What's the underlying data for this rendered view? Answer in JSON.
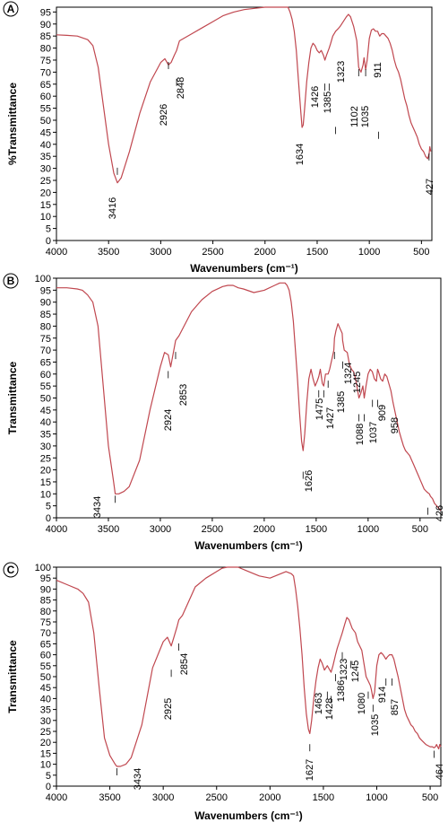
{
  "chart_data": [
    {
      "type": "line",
      "panel": "A",
      "xlabel": "Wavenumbers (cm⁻¹)",
      "ylabel": "%Transmittance",
      "xlim": [
        4000,
        400
      ],
      "ylim": [
        0,
        97
      ],
      "x_ticks": [
        4000,
        3500,
        3000,
        2500,
        2000,
        1500,
        1000,
        500
      ],
      "y_ticks": [
        0,
        5,
        10,
        15,
        20,
        25,
        30,
        35,
        40,
        45,
        50,
        55,
        60,
        65,
        70,
        75,
        80,
        85,
        90,
        95
      ],
      "color": "#c0474f",
      "grid": false,
      "series": [
        {
          "x": [
            4000,
            3900,
            3800,
            3700,
            3650,
            3600,
            3550,
            3500,
            3450,
            3416,
            3380,
            3300,
            3200,
            3100,
            3000,
            2960,
            2926,
            2900,
            2870,
            2848,
            2820,
            2700,
            2600,
            2500,
            2400,
            2300,
            2200,
            2100,
            2000,
            1950,
            1900,
            1850,
            1800,
            1780,
            1760,
            1740,
            1720,
            1700,
            1680,
            1660,
            1645,
            1634,
            1620,
            1600,
            1580,
            1560,
            1540,
            1520,
            1500,
            1480,
            1460,
            1440,
            1426,
            1410,
            1385,
            1370,
            1350,
            1323,
            1300,
            1280,
            1250,
            1220,
            1200,
            1180,
            1150,
            1120,
            1102,
            1080,
            1060,
            1050,
            1035,
            1020,
            1000,
            980,
            960,
            940,
            920,
            911,
            900,
            880,
            860,
            840,
            820,
            800,
            780,
            760,
            740,
            720,
            700,
            680,
            660,
            640,
            620,
            600,
            580,
            560,
            540,
            520,
            500,
            480,
            460,
            440,
            427,
            420,
            410
          ],
          "y": [
            85.5,
            85.3,
            85,
            83.5,
            81,
            72,
            56,
            40,
            28,
            24,
            26,
            37,
            53,
            66,
            74,
            75.6,
            73,
            74,
            77,
            79,
            83,
            86,
            88.5,
            91,
            93.5,
            95,
            96,
            96.5,
            97,
            97.5,
            98.5,
            98.8,
            98,
            97,
            95,
            92,
            87,
            79,
            67,
            55,
            47,
            48,
            55,
            66,
            74,
            80,
            82,
            81,
            79,
            78,
            79,
            77,
            75,
            77,
            80,
            82,
            85,
            87,
            88,
            89,
            91,
            93,
            94,
            93,
            89,
            83,
            72,
            70,
            73,
            76,
            71,
            75,
            84,
            87.5,
            88,
            87,
            87,
            86,
            85,
            86,
            86,
            85,
            84,
            82,
            79,
            75,
            72,
            70,
            67,
            63,
            59,
            56,
            52,
            49,
            47,
            45,
            43,
            40,
            38,
            37,
            35,
            34,
            36,
            39,
            37
          ]
        }
      ],
      "annotations": [
        "3416",
        "2926",
        "2848",
        "1634",
        "1426",
        "1385",
        "1323",
        "1102",
        "1035",
        "911",
        "427"
      ]
    },
    {
      "type": "line",
      "panel": "B",
      "xlabel": "Wavenumbers (cm⁻¹)",
      "ylabel": "Transmittance",
      "xlim": [
        4000,
        300
      ],
      "ylim": [
        0,
        100
      ],
      "x_ticks": [
        4000,
        3500,
        3000,
        2500,
        2000,
        1500,
        1000,
        500
      ],
      "y_ticks": [
        0,
        5,
        10,
        15,
        20,
        25,
        30,
        35,
        40,
        45,
        50,
        55,
        60,
        65,
        70,
        75,
        80,
        85,
        90,
        95,
        100
      ],
      "color": "#c0474f",
      "grid": false,
      "series": [
        {
          "x": [
            4000,
            3900,
            3800,
            3750,
            3700,
            3650,
            3600,
            3550,
            3500,
            3450,
            3434,
            3400,
            3350,
            3300,
            3200,
            3100,
            3000,
            2960,
            2924,
            2900,
            2870,
            2853,
            2820,
            2700,
            2600,
            2500,
            2400,
            2350,
            2300,
            2250,
            2200,
            2100,
            2000,
            1900,
            1850,
            1800,
            1780,
            1760,
            1740,
            1720,
            1700,
            1680,
            1660,
            1640,
            1626,
            1610,
            1590,
            1570,
            1550,
            1530,
            1510,
            1490,
            1475,
            1460,
            1440,
            1427,
            1410,
            1385,
            1370,
            1350,
            1330,
            1324,
            1310,
            1290,
            1270,
            1250,
            1245,
            1230,
            1200,
            1180,
            1160,
            1140,
            1120,
            1100,
            1088,
            1070,
            1050,
            1037,
            1020,
            1000,
            980,
            960,
            940,
            920,
            909,
            900,
            880,
            860,
            840,
            820,
            800,
            780,
            760,
            740,
            720,
            700,
            680,
            660,
            640,
            620,
            600,
            580,
            560,
            540,
            520,
            500,
            480,
            460,
            440,
            426,
            410,
            400,
            380,
            360,
            340,
            320,
            300
          ],
          "y": [
            96,
            96,
            95.5,
            95,
            93,
            90,
            80,
            55,
            30,
            15,
            10,
            10,
            11,
            13,
            24,
            45,
            63,
            69,
            68,
            63,
            70,
            74,
            76,
            86,
            91,
            94.5,
            96.5,
            97,
            97,
            96,
            95.5,
            94,
            95,
            97,
            98,
            98,
            97,
            95,
            90,
            82,
            70,
            58,
            44,
            32,
            28,
            35,
            48,
            58,
            62,
            58,
            55,
            57,
            59,
            62,
            56,
            55,
            60,
            60,
            62,
            66,
            70,
            75,
            78,
            81,
            79,
            77,
            74,
            70,
            69,
            64,
            62,
            61,
            58,
            53,
            50,
            52,
            55,
            50,
            55,
            60,
            62,
            61,
            58,
            57,
            62,
            61,
            58,
            57,
            60,
            59,
            56,
            53,
            48,
            44,
            40,
            36,
            33,
            30,
            28,
            27,
            26,
            24,
            22,
            20,
            18,
            16,
            14,
            12,
            11,
            10.5,
            10,
            9,
            8,
            6,
            5,
            4,
            3
          ]
        }
      ],
      "annotations": [
        "3434",
        "2924",
        "2853",
        "1626",
        "1475",
        "1427",
        "1385",
        "1324",
        "1245",
        "1088",
        "1037",
        "909",
        "958",
        "426"
      ]
    },
    {
      "type": "line",
      "panel": "C",
      "xlabel": "Wavenumbers (cm⁻¹)",
      "ylabel": "Transmittance",
      "xlim": [
        4000,
        400
      ],
      "ylim": [
        0,
        100
      ],
      "x_ticks": [
        4000,
        3500,
        3000,
        2500,
        2000,
        1500,
        1000,
        500
      ],
      "y_ticks": [
        0,
        5,
        10,
        15,
        20,
        25,
        30,
        35,
        40,
        45,
        50,
        55,
        60,
        65,
        70,
        75,
        80,
        85,
        90,
        95,
        100
      ],
      "color": "#c0474f",
      "grid": false,
      "series": [
        {
          "x": [
            4000,
            3900,
            3800,
            3750,
            3700,
            3650,
            3600,
            3550,
            3500,
            3450,
            3434,
            3400,
            3350,
            3300,
            3200,
            3100,
            3000,
            2960,
            2925,
            2900,
            2870,
            2854,
            2820,
            2700,
            2600,
            2500,
            2450,
            2400,
            2380,
            2350,
            2300,
            2200,
            2100,
            2000,
            1900,
            1850,
            1800,
            1780,
            1760,
            1740,
            1720,
            1700,
            1680,
            1660,
            1640,
            1627,
            1610,
            1590,
            1570,
            1550,
            1530,
            1510,
            1490,
            1463,
            1440,
            1428,
            1410,
            1386,
            1370,
            1350,
            1323,
            1300,
            1280,
            1260,
            1245,
            1230,
            1200,
            1180,
            1160,
            1140,
            1120,
            1100,
            1080,
            1060,
            1050,
            1035,
            1020,
            1000,
            980,
            960,
            940,
            914,
            900,
            880,
            857,
            840,
            820,
            800,
            780,
            760,
            740,
            720,
            700,
            680,
            660,
            640,
            620,
            600,
            580,
            560,
            540,
            520,
            500,
            480,
            464,
            450,
            440,
            430,
            420,
            410,
            400
          ],
          "y": [
            94,
            92,
            90,
            88,
            84,
            70,
            45,
            22,
            14,
            10,
            9,
            9,
            10,
            13,
            28,
            54,
            66,
            68,
            64,
            68,
            73,
            76,
            78,
            91,
            95,
            98,
            99.5,
            101,
            101,
            100,
            100,
            98,
            96,
            95,
            97,
            98,
            97,
            96,
            90,
            82,
            72,
            60,
            45,
            33,
            26,
            24,
            30,
            40,
            48,
            54,
            58,
            56,
            53,
            55,
            53,
            52,
            55,
            60,
            63,
            66,
            70,
            74,
            77,
            76,
            74,
            72,
            70,
            66,
            64,
            62,
            56,
            50,
            48,
            46,
            44,
            40,
            43,
            55,
            60,
            61,
            60,
            58,
            59,
            60,
            60,
            58,
            54,
            50,
            45,
            40,
            35,
            32,
            30,
            28,
            27,
            25,
            24,
            22,
            21,
            20,
            19,
            18.5,
            18,
            18,
            17.5,
            18,
            19,
            18,
            17,
            19,
            18
          ]
        }
      ],
      "annotations": [
        "3434",
        "2925",
        "2854",
        "1627",
        "1463",
        "1428",
        "1386",
        "1323",
        "1245",
        "1080",
        "1035",
        "914",
        "857",
        "464"
      ]
    }
  ]
}
